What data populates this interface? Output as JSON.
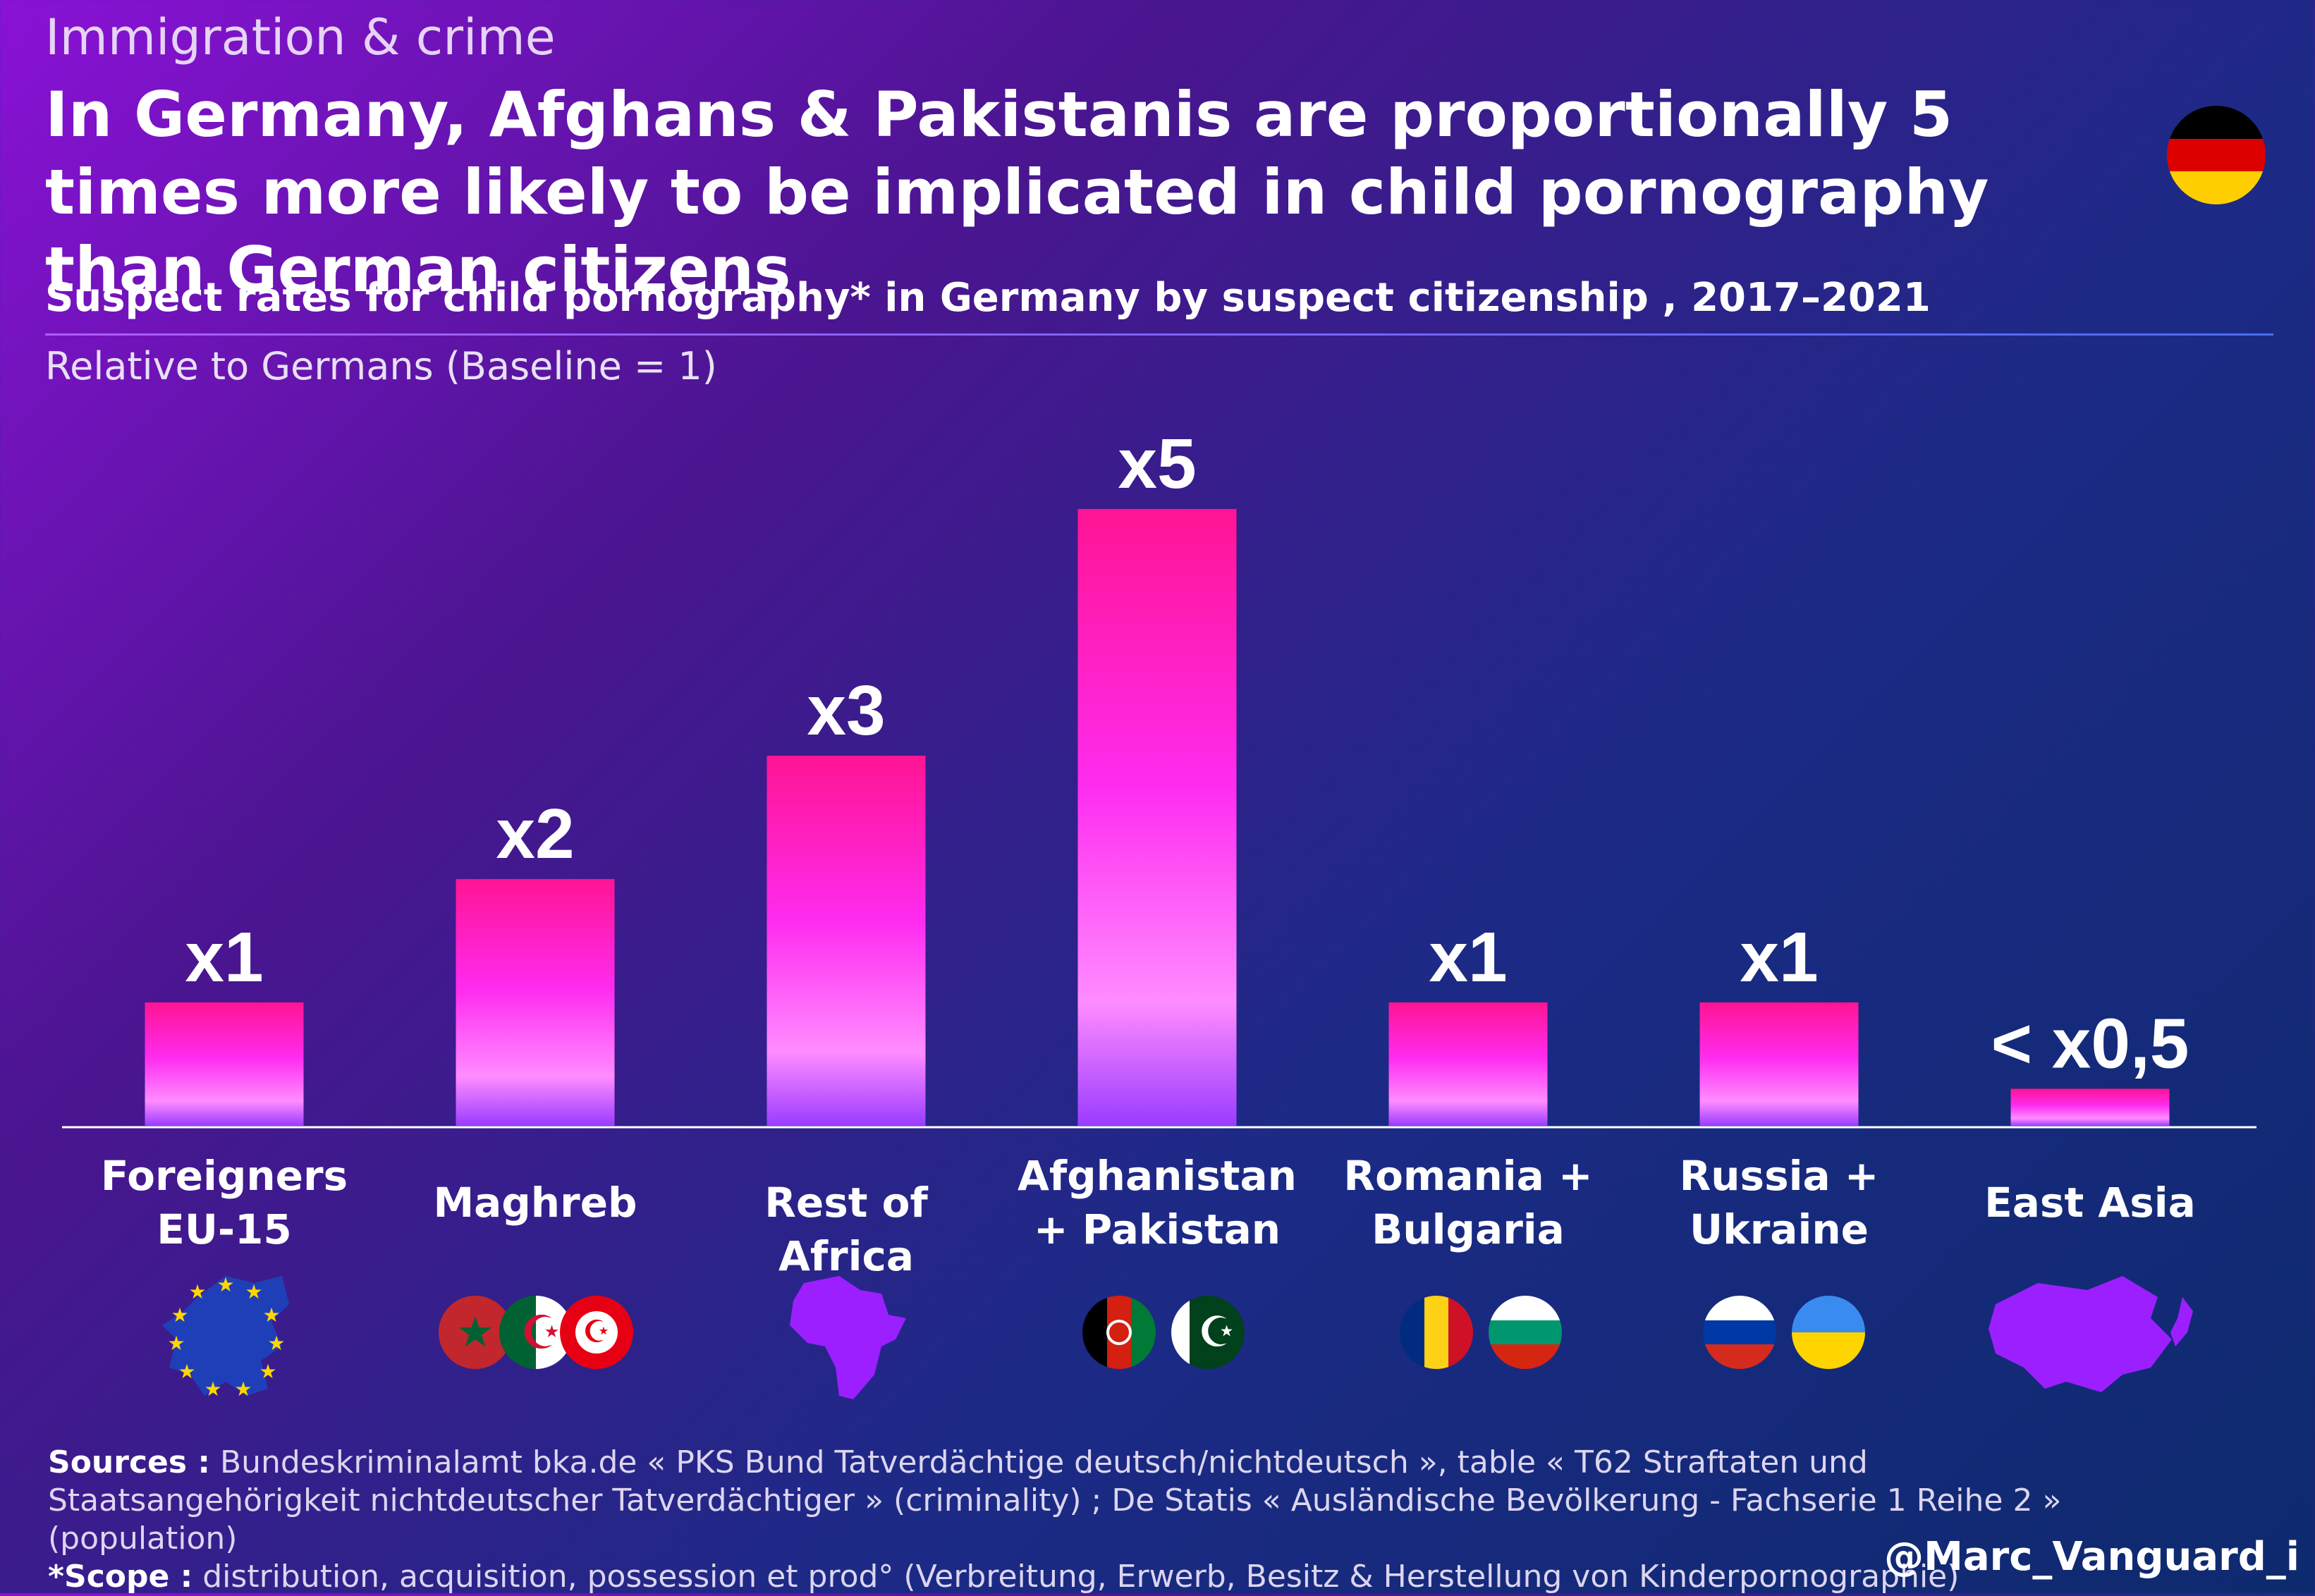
{
  "kicker": "Immigration & crime",
  "headline": "In Germany, Afghans & Pakistanis are proportionally 5 times more likely to be implicated in child pornography than German citizens",
  "subtitle": "Suspect rates for child pornography* in Germany by suspect citizenship , 2017–2021",
  "baseline_note": "Relative to Germans (Baseline = 1)",
  "chart_data": {
    "type": "bar",
    "title": "Suspect rates for child pornography* in Germany by suspect citizenship , 2017–2021",
    "ylabel": "Relative to Germans (Baseline = 1)",
    "categories": [
      "Foreigners EU-15",
      "Maghreb",
      "Rest of Africa",
      "Afghanistan + Pakistan",
      "Romania + Bulgaria",
      "Russia + Ukraine",
      "East Asia"
    ],
    "values": [
      1,
      2,
      3,
      5,
      1,
      1,
      0.3
    ],
    "value_labels": [
      "x1",
      "x2",
      "x3",
      "x5",
      "x1",
      "x1",
      "< x0,5"
    ],
    "ylim": [
      0,
      5
    ],
    "grid": false,
    "legend": "none"
  },
  "categories_display": [
    [
      "Foreigners",
      "EU-15"
    ],
    [
      "Maghreb"
    ],
    [
      "Rest of Africa"
    ],
    [
      "Afghanistan",
      "+ Pakistan"
    ],
    [
      "Romania +",
      "Bulgaria"
    ],
    [
      "Russia +",
      "Ukraine"
    ],
    [
      "East Asia"
    ]
  ],
  "colors": {
    "bar_top": "#ff1493",
    "bar_mid": "#ff2cf0",
    "bar_light": "#ff8cff",
    "bar_bottom": "#9a3cff",
    "axis": "#ffffff",
    "map_fill": "#9b1fff",
    "eu_blue": "#1f3fb8",
    "eu_star": "#ffd700"
  },
  "icons": {
    "eu": "europe-map-icon",
    "maghreb": [
      "morocco-flag-icon",
      "algeria-flag-icon",
      "tunisia-flag-icon"
    ],
    "africa": "africa-map-icon",
    "afpk": [
      "afghanistan-flag-icon",
      "pakistan-flag-icon"
    ],
    "robg": [
      "romania-flag-icon",
      "bulgaria-flag-icon"
    ],
    "ruua": [
      "russia-flag-icon",
      "ukraine-flag-icon"
    ],
    "asia": "east-asia-map-icon",
    "germany": "germany-flag-icon"
  },
  "sources": {
    "sources_label": "Sources :",
    "sources_text": " Bundeskriminalamt bka.de « PKS Bund Tatverdächtige deutsch/nichtdeutsch », table « T62 Straftaten und Staatsangehörigkeit nichtdeutscher Tatverdächtiger » (criminality) ; De Statis « Ausländische Bevölkerung - Fachserie 1 Reihe 2 » (population)",
    "scope_label": "*Scope :",
    "scope_text": " distribution, acquisition, possession et prod° (Verbreitung, Erwerb, Besitz & Herstellung von Kinderpornographie)"
  },
  "handle": "@Marc_Vanguard_i"
}
